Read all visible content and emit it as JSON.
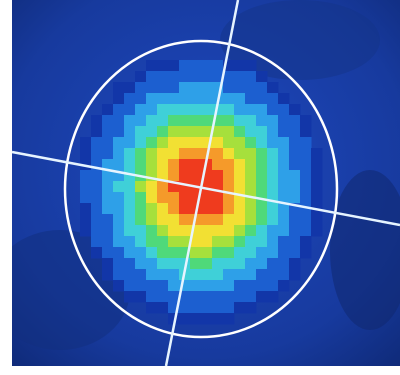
{
  "image": {
    "kind": "beam-intensity-profile",
    "colormap": [
      "#1236a8",
      "#1c5fd0",
      "#2ea0e8",
      "#3fd0d8",
      "#4fd97a",
      "#a6e03c",
      "#f2e033",
      "#f59a2a",
      "#ef3b1e"
    ],
    "background_color": "#1a3aa0",
    "overlay_color": "#ffffff",
    "crosshair_color": "#e6f4ff"
  }
}
